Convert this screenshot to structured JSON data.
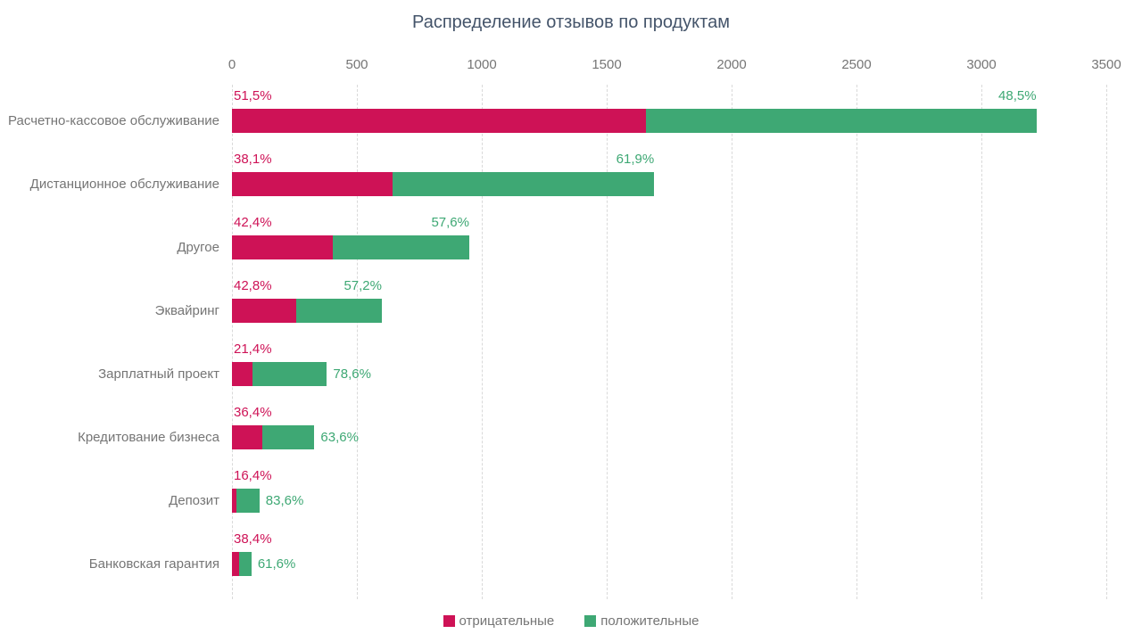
{
  "title": "Распределение отзывов по продуктам",
  "axis": {
    "ticks": [
      "0",
      "500",
      "1000",
      "1500",
      "2000",
      "2500",
      "3000",
      "3500"
    ],
    "tick_values": [
      0,
      500,
      1000,
      1500,
      2000,
      2500,
      3000,
      3500
    ],
    "max": 3500
  },
  "colors": {
    "negative": "#ce1256",
    "positive": "#3ea874",
    "title": "#44546a",
    "text_gray": "#757575",
    "gridline": "#d9d9d9"
  },
  "legend": {
    "items": [
      {
        "label": "отрицательные",
        "color": "#ce1256"
      },
      {
        "label": "положительные",
        "color": "#3ea874"
      }
    ]
  },
  "chart_data": {
    "type": "bar",
    "orientation": "horizontal",
    "stacked": true,
    "title": "Распределение отзывов по продуктам",
    "xlabel": "",
    "ylabel": "",
    "xlim": [
      0,
      3500
    ],
    "x_ticks": [
      0,
      500,
      1000,
      1500,
      2000,
      2500,
      3000,
      3500
    ],
    "grid": "vertical-dashed",
    "legend_position": "bottom-center",
    "categories": [
      "Расчетно-кассовое обслуживание",
      "Дистанционное обслуживание",
      "Другое",
      "Эквайринг",
      "Зарплатный проект",
      "Кредитование бизнеса",
      "Депозит",
      "Банковская гарантия"
    ],
    "totals_estimated": [
      3220,
      1690,
      950,
      600,
      380,
      330,
      110,
      78
    ],
    "series": [
      {
        "name": "отрицательные",
        "color": "#ce1256",
        "values": [
          1658,
          644,
          403,
          257,
          81,
          120,
          18,
          30
        ],
        "percent_labels": [
          "51,5%",
          "38,1%",
          "42,4%",
          "42,8%",
          "21,4%",
          "36,4%",
          "16,4%",
          "38,4%"
        ]
      },
      {
        "name": "положительные",
        "color": "#3ea874",
        "values": [
          1562,
          1046,
          547,
          343,
          299,
          210,
          92,
          48
        ],
        "percent_labels": [
          "48,5%",
          "61,9%",
          "57,6%",
          "57,2%",
          "78,6%",
          "63,6%",
          "83,6%",
          "61,6%"
        ]
      }
    ]
  }
}
